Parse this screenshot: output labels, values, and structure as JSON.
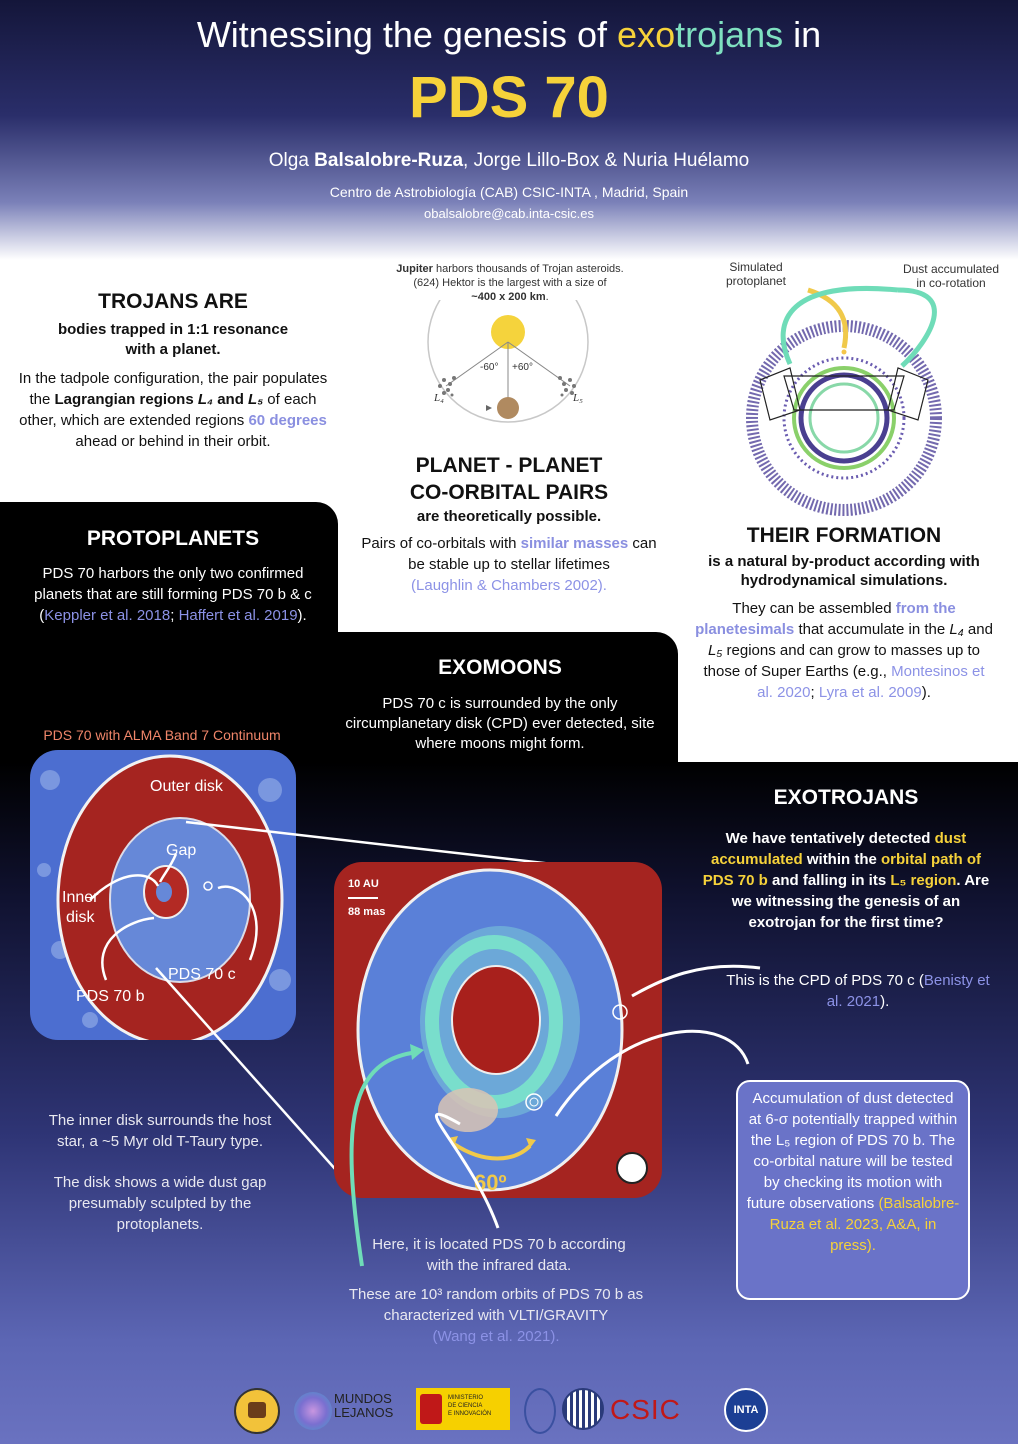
{
  "header": {
    "title_pre": "Witnessing the genesis of ",
    "title_exo": "exo",
    "title_trojans": "trojans",
    "title_post": " in",
    "title_main": "PDS 70",
    "authors_pre": "Olga ",
    "authors_bold": "Balsalobre-Ruza",
    "authors_post": ", Jorge Lillo-Box & Nuria Huélamo",
    "affiliation": "Centro de Astrobiología (CAB) CSIC-INTA , Madrid, Spain",
    "email": "obalsalobre@cab.inta-csic.es"
  },
  "trojans": {
    "heading": "TROJANS ARE",
    "subheading": "bodies trapped in 1:1 resonance with a planet.",
    "body_1": "In the tadpole configuration, the pair populates the ",
    "body_bold": "Lagrangian regions ",
    "l4": "L₄",
    "and": "and",
    "l5": "L₅",
    "body_2": " of each other, which are extended regions ",
    "body_hl": "60 degrees",
    "body_3": " ahead or behind in their orbit."
  },
  "jupiter": {
    "caption_bold": "Jupiter",
    "caption_1": " harbors thousands of Trojan asteroids.",
    "caption_2": "(624) Hektor is the largest with a size of",
    "caption_size": "~400 x 200 km",
    "caption_dot": ".",
    "angle_left": "-60°",
    "angle_right": "+60°",
    "l4": "L₄",
    "l5": "L₅"
  },
  "simulation": {
    "label_protoplanet": "Simulated\nprotoplanet",
    "label_dust": "Dust accumulated\nin co-rotation"
  },
  "planet_pairs": {
    "heading_1": "PLANET - PLANET",
    "heading_2": "CO-ORBITAL PAIRS",
    "subheading": "are theoretically possible.",
    "body_1": "Pairs of co-orbitals with ",
    "body_hl": "similar masses",
    "body_2": " can be stable up to stellar lifetimes",
    "ref": "(Laughlin & Chambers 2002)."
  },
  "formation": {
    "heading": "THEIR FORMATION",
    "subheading": "is a natural by-product according with hydrodynamical simulations.",
    "body_1": "They can be assembled ",
    "body_hl": "from the planetesimals",
    "body_2": " that accumulate in the ",
    "l4": "L₄",
    "body_3": " and ",
    "l5": "L₅",
    "body_4": " regions and can grow to masses up to those of Super Earths (e.g., ",
    "ref1": "Montesinos et al. 2020",
    "ref_sep": ";",
    "ref2": "Lyra et al. 2009",
    "end": ")."
  },
  "protoplanets": {
    "heading": "PROTOPLANETS",
    "body": "PDS 70 harbors the only two confirmed planets that are still forming PDS 70 b & c (",
    "ref1": "Keppler et al. 2018",
    "sep": ";",
    "ref2": "Haffert et al. 2019",
    "end": ")."
  },
  "exomoons": {
    "heading": "EXOMOONS",
    "body": "PDS 70 c is surrounded by the only circumplanetary disk (CPD) ever detected, site where moons might form."
  },
  "alma": {
    "caption": "PDS 70 with ALMA Band 7 Continuum",
    "outer_disk": "Outer disk",
    "gap": "Gap",
    "inner_disk": "Inner\ndisk",
    "pds70c": "PDS 70 c",
    "pds70b": "PDS 70 b"
  },
  "zoom": {
    "scale_au": "10 AU",
    "scale_mas": "88 mas",
    "angle": "60º"
  },
  "exotrojans": {
    "heading": "EXOTROJANS",
    "body_1": "We have tentatively detected ",
    "hl_1": "dust accumulated",
    "body_2": " within the ",
    "hl_2": "orbital path of PDS 70 b",
    "body_3": " and falling in its ",
    "hl_3": "L₅ region",
    "body_4": ".",
    "question": "Are we witnessing the genesis of an exotrojan for the first time?"
  },
  "cpd_note": {
    "body": "This is the CPD of PDS 70 c (",
    "ref": "Benisty et al. 2021",
    "end": ")."
  },
  "accumulation_box": {
    "body": "Accumulation of dust detected at 6-σ potentially trapped within the L₅ region of PDS 70 b. The co-orbital nature will be tested by checking its motion with future observations",
    "ref": "(Balsalobre-Ruza et al. 2023, A&A, in press)."
  },
  "inner_note": {
    "p1": "The inner disk surrounds the host star, a ~5 Myr old T-Taury type.",
    "p2": "The disk shows a wide dust gap presumably sculpted by the protoplanets."
  },
  "located_note": "Here, it is located PDS 70 b according with the infrared data.",
  "orbits_note": {
    "body": "These are 10³ random orbits of PDS 70 b as characterized with VLTI/GRAVITY",
    "ref": "(Wang et al. 2021)."
  },
  "logos": {
    "mundos_1": "MUNDOS",
    "mundos_2": "LEJANOS",
    "ministerio": "MINISTERIO\nDE CIENCIA\nE INNOVACIÓN",
    "csic": "CSIC",
    "inta": "INTA"
  }
}
